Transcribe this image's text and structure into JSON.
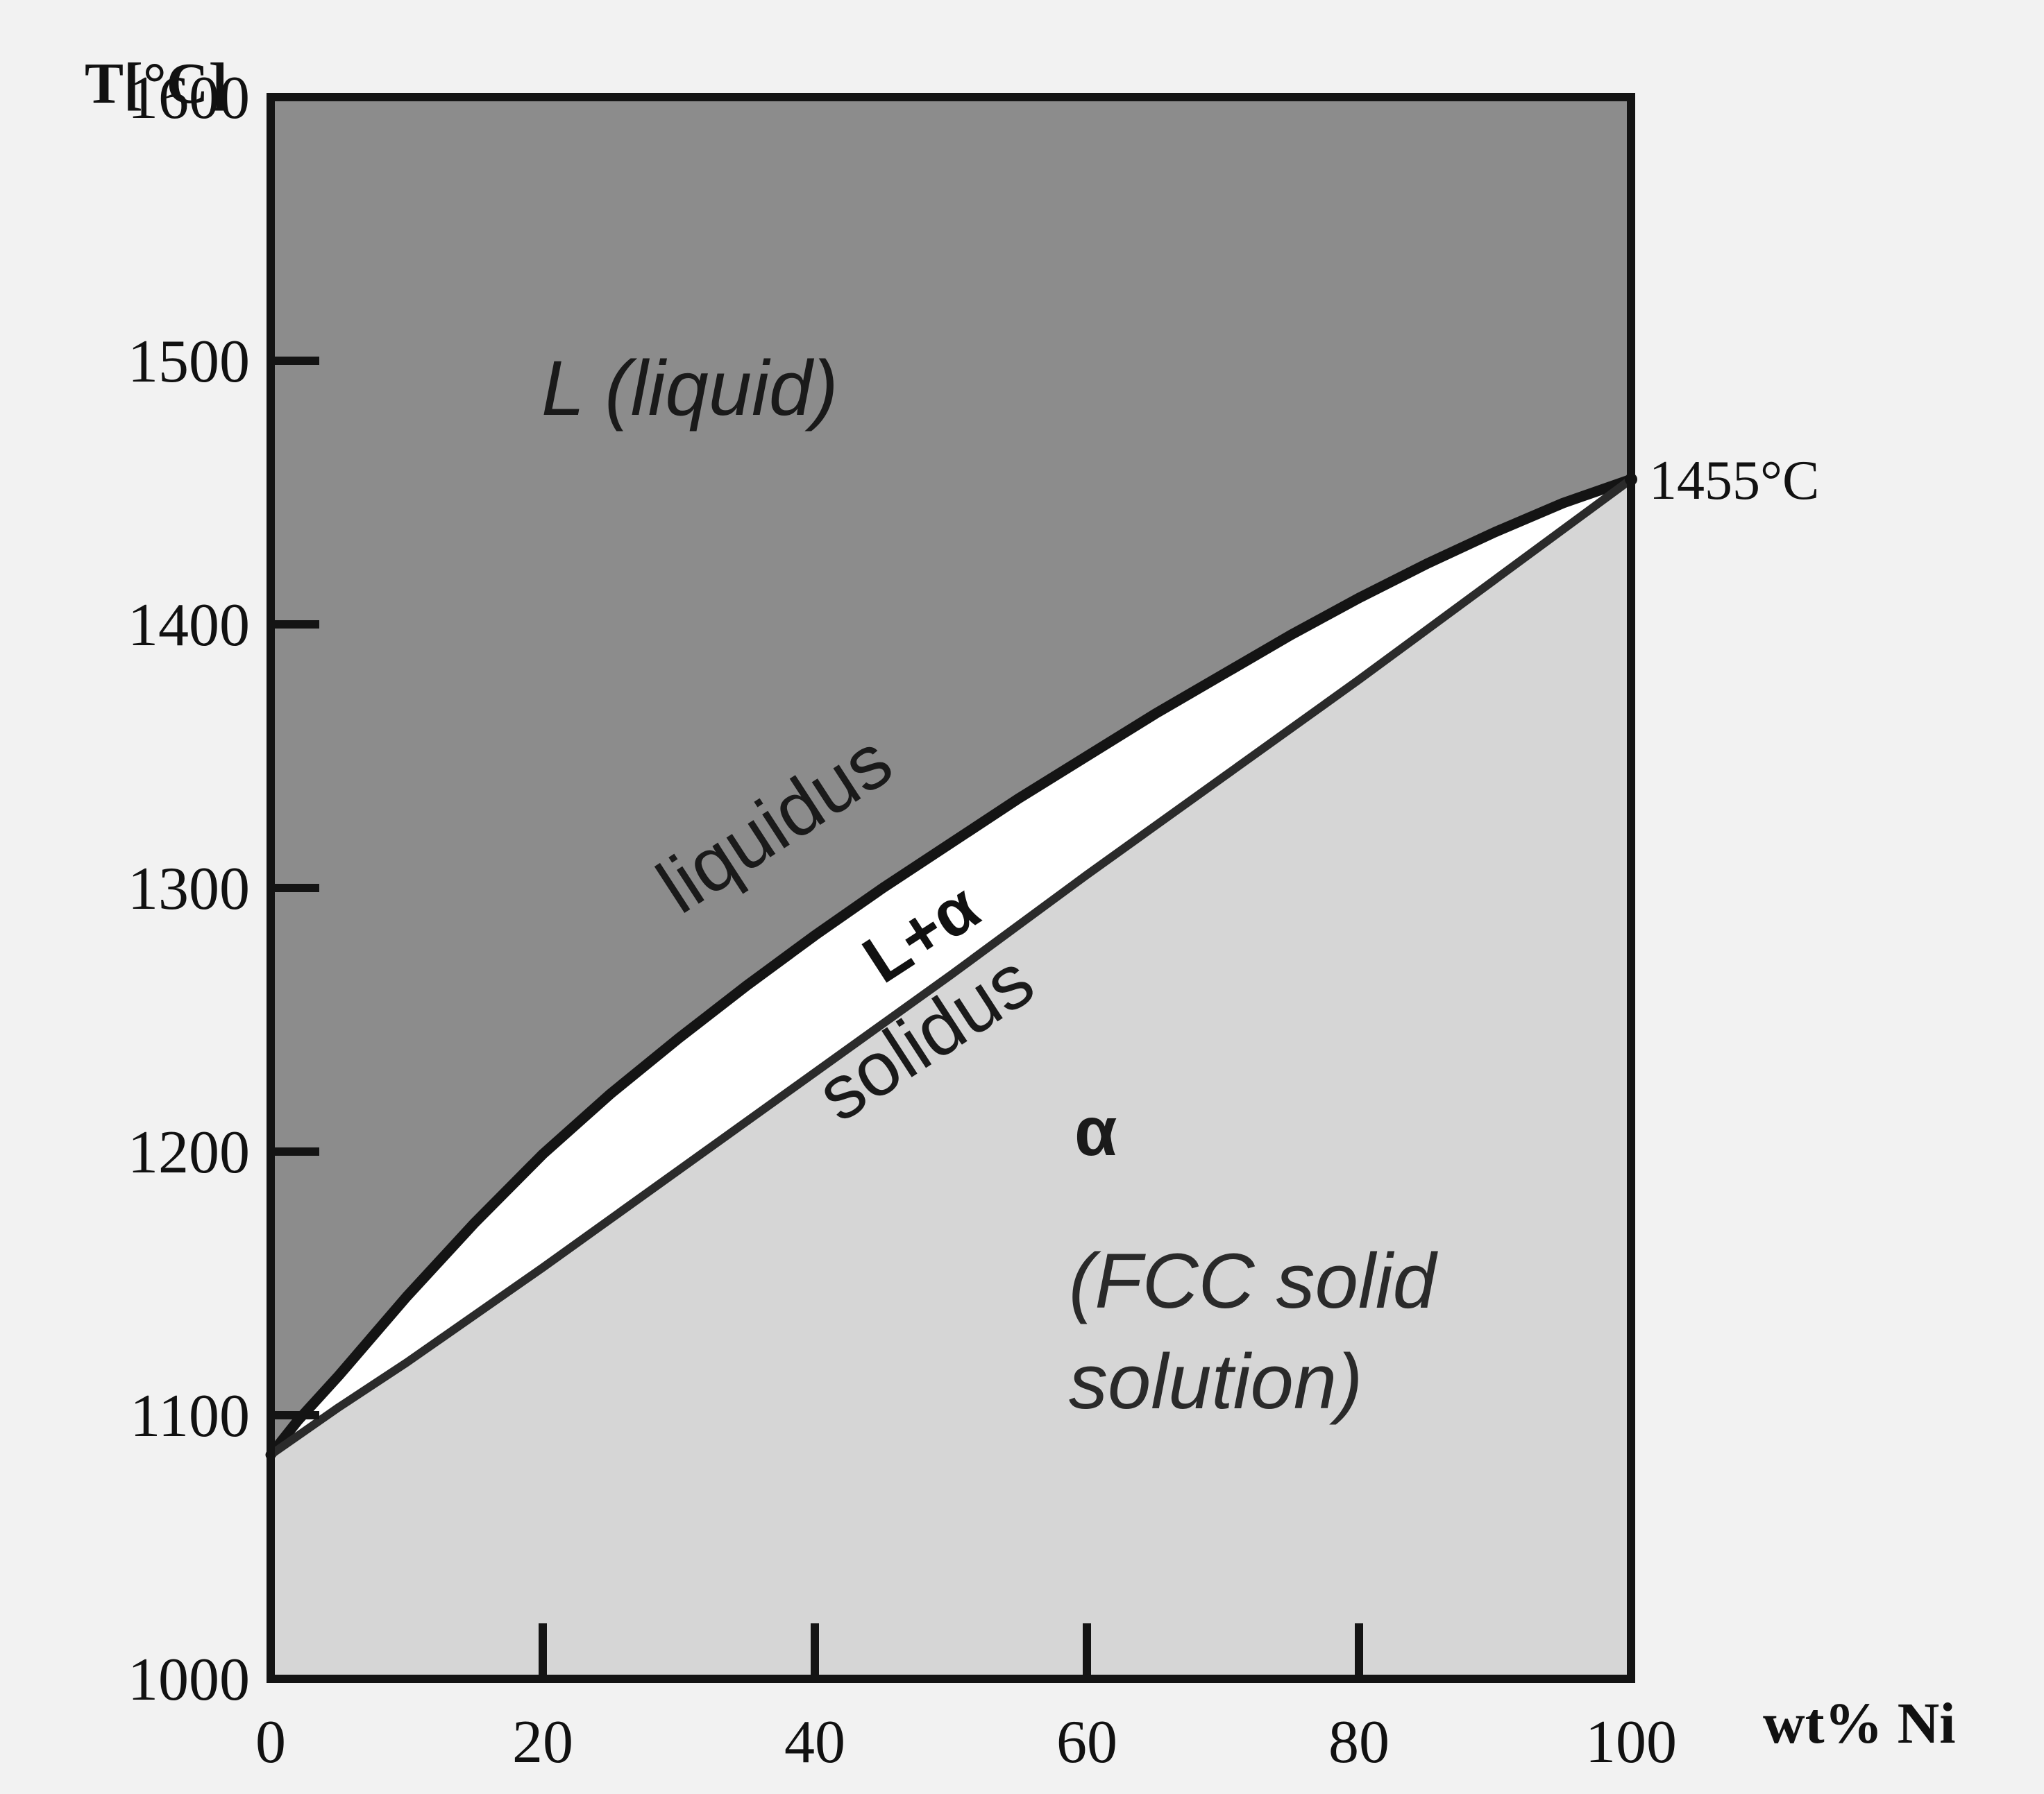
{
  "chart_data": {
    "type": "line",
    "title": "",
    "ylabel": "T[°C]",
    "xlabel": "wt% Ni",
    "xlim": [
      0,
      100
    ],
    "ylim": [
      1000,
      1600
    ],
    "x_ticks": [
      "0",
      "20",
      "40",
      "60",
      "80",
      "100"
    ],
    "y_ticks": [
      "1000",
      "1100",
      "1200",
      "1300",
      "1400",
      "1500",
      "1600"
    ],
    "series": [
      {
        "name": "liquidus",
        "x": [
          0,
          2,
          5,
          10,
          15,
          20,
          25,
          30,
          35,
          40,
          45,
          50,
          55,
          60,
          65,
          70,
          75,
          80,
          85,
          90,
          95,
          100
        ],
        "y": [
          1085,
          1098,
          1115,
          1145,
          1173,
          1199,
          1222,
          1243,
          1263,
          1282,
          1300,
          1317,
          1334,
          1350,
          1366,
          1381,
          1396,
          1410,
          1423,
          1435,
          1446,
          1455
        ]
      },
      {
        "name": "solidus",
        "x": [
          0,
          5,
          10,
          20,
          30,
          40,
          50,
          60,
          70,
          80,
          90,
          100
        ],
        "y": [
          1085,
          1103,
          1120,
          1156,
          1193,
          1230,
          1267,
          1305,
          1342,
          1379,
          1417,
          1455
        ]
      }
    ],
    "annotations": {
      "liquid_region": "L (liquid)",
      "two_phase_region": "L+α",
      "liquidus_label": "liquidus",
      "solidus_label": "solidus",
      "alpha_label": "α",
      "alpha_desc_line1": "(FCC solid",
      "alpha_desc_line2": "solution)",
      "melting_point": "1455°C"
    },
    "colors": {
      "liquid_region": "#8c8c8c",
      "two_phase_region": "#ffffff",
      "alpha_region": "#d6d6d6",
      "lines": "#141414"
    },
    "grid": false,
    "legend": "none"
  }
}
